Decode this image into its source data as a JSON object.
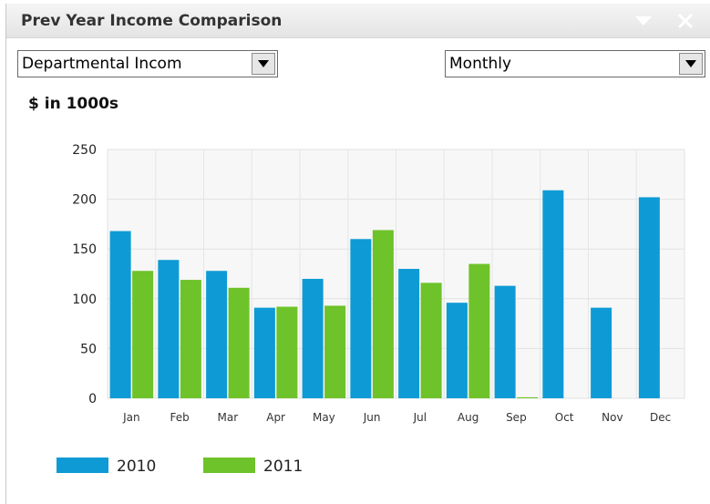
{
  "widget": {
    "title": "Prev Year Income Comparison",
    "dept_select": "Departmental Incom",
    "period_select": "Monthly",
    "units_label": "$ in 1000s",
    "icons": {
      "collapse": "chevron-down-icon",
      "close": "close-icon"
    }
  },
  "chart_data": {
    "type": "bar",
    "categories": [
      "Jan",
      "Feb",
      "Mar",
      "Apr",
      "May",
      "Jun",
      "Jul",
      "Aug",
      "Sep",
      "Oct",
      "Nov",
      "Dec"
    ],
    "series": [
      {
        "name": "2010",
        "color": "#0e9bd5",
        "values": [
          168,
          139,
          128,
          91,
          120,
          160,
          130,
          96,
          113,
          209,
          91,
          202
        ]
      },
      {
        "name": "2011",
        "color": "#6ec22a",
        "values": [
          128,
          119,
          111,
          92,
          93,
          169,
          116,
          135,
          1,
          null,
          null,
          null
        ]
      }
    ],
    "ylabel": "$ in 1000s",
    "ylim": [
      0,
      250
    ],
    "yticks": [
      0,
      50,
      100,
      150,
      200,
      250
    ],
    "grid": true,
    "legend": "bottom-left"
  }
}
